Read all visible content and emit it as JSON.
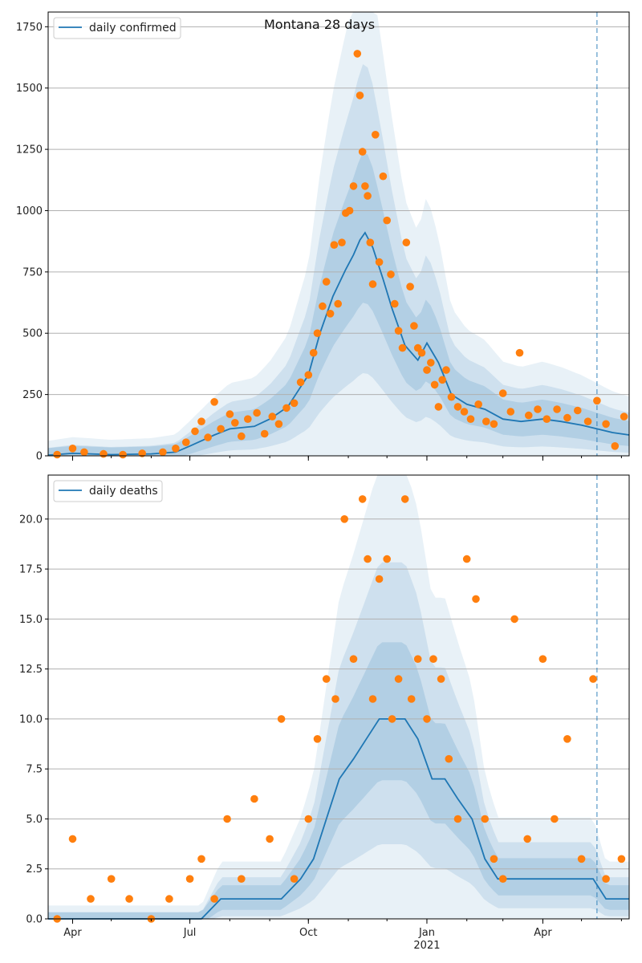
{
  "title": "Montana 28 days",
  "colors": {
    "line": "#1f77b4",
    "dots": "#ff7f0e",
    "band": "#1f77b4",
    "grid": "#b0b0b0",
    "vline": "#1f77b4"
  },
  "x_ticks": [
    {
      "date": "2020-04-01",
      "label": "Apr",
      "sublabel": ""
    },
    {
      "date": "2020-07-01",
      "label": "Jul",
      "sublabel": ""
    },
    {
      "date": "2020-10-01",
      "label": "Oct",
      "sublabel": ""
    },
    {
      "date": "2021-01-01",
      "label": "Jan",
      "sublabel": "2021"
    },
    {
      "date": "2021-04-01",
      "label": "Apr",
      "sublabel": ""
    }
  ],
  "chart_data": [
    {
      "type": "line",
      "title": "Montana 28 days",
      "legend": "daily confirmed",
      "legend_position": "top-left",
      "xlim": [
        "2020-03-13",
        "2021-06-07"
      ],
      "ylim": [
        0,
        1810
      ],
      "yticks": [
        0,
        250,
        500,
        750,
        1000,
        1250,
        1500,
        1750
      ],
      "ytick_labels": [
        "0",
        "250",
        "500",
        "750",
        "1000",
        "1250",
        "1500",
        "1750"
      ],
      "grid": "horizontal",
      "forecast_start": "2021-05-13",
      "series": [
        {
          "name": "daily confirmed",
          "kind": "model-median",
          "x": [
            "2020-03-13",
            "2020-04-01",
            "2020-05-01",
            "2020-06-01",
            "2020-06-20",
            "2020-07-01",
            "2020-07-20",
            "2020-08-01",
            "2020-08-20",
            "2020-09-01",
            "2020-09-15",
            "2020-10-01",
            "2020-10-10",
            "2020-10-20",
            "2020-10-30",
            "2020-11-05",
            "2020-11-10",
            "2020-11-14",
            "2020-11-20",
            "2020-11-28",
            "2020-12-05",
            "2020-12-15",
            "2020-12-25",
            "2021-01-01",
            "2021-01-10",
            "2021-01-20",
            "2021-02-01",
            "2021-02-15",
            "2021-03-01",
            "2021-03-15",
            "2021-04-01",
            "2021-04-15",
            "2021-05-01",
            "2021-05-13",
            "2021-05-25",
            "2021-06-07"
          ],
          "y": [
            3,
            10,
            5,
            8,
            15,
            40,
            85,
            110,
            120,
            150,
            200,
            330,
            500,
            650,
            760,
            820,
            880,
            910,
            850,
            720,
            600,
            450,
            390,
            460,
            380,
            250,
            210,
            190,
            150,
            140,
            150,
            140,
            125,
            110,
            95,
            85
          ]
        },
        {
          "name": "observed",
          "kind": "points",
          "x": [
            "2020-03-20",
            "2020-04-01",
            "2020-04-10",
            "2020-04-25",
            "2020-05-10",
            "2020-05-25",
            "2020-06-10",
            "2020-06-20",
            "2020-06-28",
            "2020-07-05",
            "2020-07-10",
            "2020-07-15",
            "2020-07-20",
            "2020-07-25",
            "2020-08-01",
            "2020-08-05",
            "2020-08-10",
            "2020-08-15",
            "2020-08-22",
            "2020-08-28",
            "2020-09-03",
            "2020-09-08",
            "2020-09-14",
            "2020-09-20",
            "2020-09-25",
            "2020-10-01",
            "2020-10-05",
            "2020-10-08",
            "2020-10-12",
            "2020-10-15",
            "2020-10-18",
            "2020-10-21",
            "2020-10-24",
            "2020-10-27",
            "2020-10-30",
            "2020-11-02",
            "2020-11-05",
            "2020-11-08",
            "2020-11-10",
            "2020-11-12",
            "2020-11-14",
            "2020-11-16",
            "2020-11-18",
            "2020-11-20",
            "2020-11-22",
            "2020-11-25",
            "2020-11-28",
            "2020-12-01",
            "2020-12-04",
            "2020-12-07",
            "2020-12-10",
            "2020-12-13",
            "2020-12-16",
            "2020-12-19",
            "2020-12-22",
            "2020-12-25",
            "2020-12-28",
            "2021-01-01",
            "2021-01-04",
            "2021-01-07",
            "2021-01-10",
            "2021-01-13",
            "2021-01-16",
            "2021-01-20",
            "2021-01-25",
            "2021-01-30",
            "2021-02-04",
            "2021-02-10",
            "2021-02-16",
            "2021-02-22",
            "2021-03-01",
            "2021-03-07",
            "2021-03-14",
            "2021-03-21",
            "2021-03-28",
            "2021-04-04",
            "2021-04-12",
            "2021-04-20",
            "2021-04-28",
            "2021-05-06",
            "2021-05-13",
            "2021-05-20",
            "2021-05-27",
            "2021-06-03"
          ],
          "y": [
            5,
            30,
            15,
            8,
            5,
            10,
            15,
            30,
            55,
            100,
            140,
            75,
            220,
            110,
            170,
            135,
            80,
            150,
            175,
            90,
            160,
            130,
            195,
            215,
            300,
            330,
            420,
            500,
            610,
            710,
            580,
            860,
            620,
            870,
            990,
            1000,
            1100,
            1640,
            1470,
            1240,
            1100,
            1060,
            870,
            700,
            1310,
            790,
            1140,
            960,
            740,
            620,
            510,
            440,
            870,
            690,
            530,
            440,
            420,
            350,
            380,
            290,
            200,
            310,
            350,
            240,
            200,
            180,
            150,
            210,
            140,
            130,
            255,
            180,
            420,
            165,
            190,
            150,
            190,
            155,
            185,
            140,
            225,
            130,
            40,
            160
          ]
        }
      ],
      "bands": [
        "inner 50%",
        "middle 80%",
        "outer 95%"
      ]
    },
    {
      "type": "line",
      "legend": "daily deaths",
      "legend_position": "top-left",
      "xlim": [
        "2020-03-13",
        "2021-06-07"
      ],
      "ylim": [
        0,
        22.2
      ],
      "yticks": [
        0,
        2.5,
        5,
        7.5,
        10,
        12.5,
        15,
        17.5,
        20
      ],
      "ytick_labels": [
        "0.0",
        "2.5",
        "5.0",
        "7.5",
        "10.0",
        "12.5",
        "15.0",
        "17.5",
        "20.0"
      ],
      "grid": "horizontal",
      "forecast_start": "2021-05-13",
      "series": [
        {
          "name": "daily deaths",
          "kind": "model-median",
          "x": [
            "2020-03-13",
            "2020-07-10",
            "2020-07-25",
            "2020-08-10",
            "2020-08-25",
            "2020-09-10",
            "2020-09-25",
            "2020-10-05",
            "2020-10-15",
            "2020-10-25",
            "2020-11-05",
            "2020-11-15",
            "2020-11-25",
            "2020-12-05",
            "2020-12-15",
            "2020-12-25",
            "2021-01-05",
            "2021-01-15",
            "2021-01-25",
            "2021-02-05",
            "2021-02-15",
            "2021-02-25",
            "2021-03-10",
            "2021-03-25",
            "2021-04-10",
            "2021-04-25",
            "2021-05-10",
            "2021-05-20",
            "2021-06-07"
          ],
          "y": [
            0,
            0,
            1,
            1,
            1,
            1,
            2,
            3,
            5,
            7,
            8,
            9,
            10,
            10,
            10,
            9,
            7,
            7,
            6,
            5,
            3,
            2,
            2,
            2,
            2,
            2,
            2,
            1,
            1
          ]
        },
        {
          "name": "observed",
          "kind": "points",
          "x": [
            "2020-03-20",
            "2020-04-01",
            "2020-04-15",
            "2020-05-01",
            "2020-05-15",
            "2020-06-01",
            "2020-06-15",
            "2020-07-01",
            "2020-07-10",
            "2020-07-20",
            "2020-07-30",
            "2020-08-10",
            "2020-08-20",
            "2020-09-01",
            "2020-09-10",
            "2020-09-20",
            "2020-10-01",
            "2020-10-08",
            "2020-10-15",
            "2020-10-22",
            "2020-10-29",
            "2020-11-05",
            "2020-11-12",
            "2020-11-16",
            "2020-11-20",
            "2020-11-25",
            "2020-12-01",
            "2020-12-05",
            "2020-12-10",
            "2020-12-15",
            "2020-12-20",
            "2020-12-25",
            "2021-01-01",
            "2021-01-06",
            "2021-01-12",
            "2021-01-18",
            "2021-01-25",
            "2021-02-01",
            "2021-02-08",
            "2021-02-15",
            "2021-02-22",
            "2021-03-01",
            "2021-03-10",
            "2021-03-20",
            "2021-04-01",
            "2021-04-10",
            "2021-04-20",
            "2021-05-01",
            "2021-05-10",
            "2021-05-20",
            "2021-06-01"
          ],
          "y": [
            0,
            4,
            1,
            2,
            1,
            0,
            1,
            2,
            3,
            1,
            5,
            2,
            6,
            4,
            10,
            2,
            5,
            9,
            12,
            11,
            20,
            13,
            21,
            18,
            11,
            17,
            18,
            10,
            12,
            21,
            11,
            13,
            10,
            13,
            12,
            8,
            5,
            18,
            16,
            5,
            3,
            2,
            15,
            4,
            13,
            5,
            9,
            3,
            12,
            2,
            3
          ]
        }
      ],
      "bands": [
        "inner 50%",
        "middle 80%",
        "outer 95%"
      ]
    }
  ]
}
